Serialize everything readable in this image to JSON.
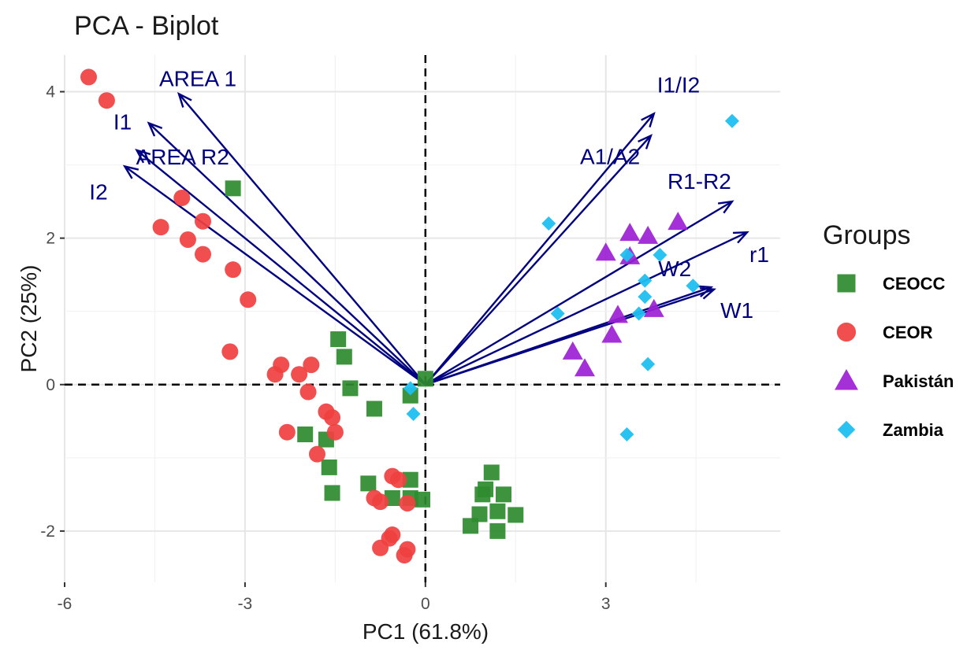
{
  "chart_data": {
    "type": "scatter",
    "title": "PCA - Biplot",
    "xlabel": "PC1 (61.8%)",
    "ylabel": "PC2 (25%)",
    "xlim": [
      -6.0,
      5.9
    ],
    "ylim": [
      -2.7,
      4.5
    ],
    "x_ticks": [
      -6,
      -3,
      0,
      3
    ],
    "x_tick_labels": [
      "-6",
      "-3",
      "0",
      "3"
    ],
    "y_ticks": [
      -2,
      0,
      2,
      4
    ],
    "y_tick_labels": [
      "-2",
      "0",
      "2",
      "4"
    ],
    "grid": true,
    "reference_lines": {
      "x": 0,
      "y": 0,
      "style": "dashed"
    },
    "legend": {
      "title": "Groups",
      "placement": "right"
    },
    "groups": [
      {
        "name": "CEOCC",
        "marker": "square",
        "color": "#2e8b2e",
        "points": [
          [
            -3.2,
            2.68
          ],
          [
            -1.45,
            0.62
          ],
          [
            -1.35,
            0.38
          ],
          [
            -1.25,
            -0.05
          ],
          [
            -0.85,
            -0.33
          ],
          [
            -0.25,
            -0.15
          ],
          [
            0.0,
            0.08
          ],
          [
            -2.0,
            -0.68
          ],
          [
            -1.65,
            -0.75
          ],
          [
            -1.6,
            -1.13
          ],
          [
            -1.55,
            -1.48
          ],
          [
            -0.95,
            -1.35
          ],
          [
            -0.55,
            -1.55
          ],
          [
            -0.25,
            -1.3
          ],
          [
            -0.25,
            -1.55
          ],
          [
            -0.05,
            -1.57
          ],
          [
            0.75,
            -1.93
          ],
          [
            0.9,
            -1.77
          ],
          [
            0.95,
            -1.5
          ],
          [
            1.0,
            -1.43
          ],
          [
            1.1,
            -1.2
          ],
          [
            1.2,
            -1.73
          ],
          [
            1.2,
            -2.0
          ],
          [
            1.3,
            -1.5
          ],
          [
            1.5,
            -1.78
          ]
        ]
      },
      {
        "name": "CEOR",
        "marker": "circle",
        "color": "#f04040",
        "points": [
          [
            -5.6,
            4.2
          ],
          [
            -5.3,
            3.88
          ],
          [
            -4.05,
            2.55
          ],
          [
            -4.4,
            2.15
          ],
          [
            -3.7,
            2.23
          ],
          [
            -3.95,
            1.98
          ],
          [
            -3.7,
            1.78
          ],
          [
            -3.2,
            1.57
          ],
          [
            -2.95,
            1.16
          ],
          [
            -3.25,
            0.45
          ],
          [
            -2.4,
            0.27
          ],
          [
            -2.5,
            0.14
          ],
          [
            -2.1,
            0.14
          ],
          [
            -1.9,
            0.27
          ],
          [
            -1.95,
            -0.1
          ],
          [
            -1.65,
            -0.37
          ],
          [
            -1.55,
            -0.45
          ],
          [
            -1.5,
            -0.65
          ],
          [
            -2.3,
            -0.65
          ],
          [
            -1.8,
            -0.95
          ],
          [
            -0.55,
            -1.25
          ],
          [
            -0.45,
            -1.3
          ],
          [
            -0.85,
            -1.55
          ],
          [
            -0.75,
            -1.6
          ],
          [
            -0.3,
            -1.62
          ],
          [
            -0.55,
            -2.05
          ],
          [
            -0.6,
            -2.1
          ],
          [
            -0.75,
            -2.23
          ],
          [
            -0.3,
            -2.25
          ],
          [
            -0.35,
            -2.33
          ]
        ]
      },
      {
        "name": "Pakistán",
        "marker": "triangle",
        "color": "#9b1fd4",
        "points": [
          [
            4.2,
            2.22
          ],
          [
            3.4,
            2.07
          ],
          [
            3.7,
            2.03
          ],
          [
            3.0,
            1.8
          ],
          [
            3.4,
            1.75
          ],
          [
            3.8,
            1.03
          ],
          [
            3.2,
            0.95
          ],
          [
            3.1,
            0.68
          ],
          [
            2.45,
            0.45
          ],
          [
            2.65,
            0.22
          ]
        ]
      },
      {
        "name": "Zambia",
        "marker": "diamond",
        "color": "#1fbfef",
        "points": [
          [
            5.1,
            3.6
          ],
          [
            2.05,
            2.2
          ],
          [
            3.35,
            1.77
          ],
          [
            3.9,
            1.77
          ],
          [
            3.65,
            1.42
          ],
          [
            4.45,
            1.35
          ],
          [
            3.65,
            1.2
          ],
          [
            3.55,
            0.97
          ],
          [
            2.2,
            0.97
          ],
          [
            3.7,
            0.28
          ],
          [
            -0.25,
            -0.05
          ],
          [
            -0.2,
            -0.4
          ],
          [
            3.35,
            -0.68
          ]
        ]
      }
    ],
    "loadings": [
      {
        "label": "AREA 1",
        "x": -4.1,
        "y": 3.97
      },
      {
        "label": "I1",
        "x": -4.6,
        "y": 3.57
      },
      {
        "label": "AREA R2",
        "x": -4.8,
        "y": 3.2
      },
      {
        "label": "I2",
        "x": -5.0,
        "y": 2.98
      },
      {
        "label": "I1/I2",
        "x": 3.8,
        "y": 3.7
      },
      {
        "label": "A1/A2",
        "x": 3.75,
        "y": 3.4
      },
      {
        "label": "R1-R2",
        "x": 5.1,
        "y": 2.5
      },
      {
        "label": "r1",
        "x": 5.35,
        "y": 2.08
      },
      {
        "label": "W2",
        "x": 4.75,
        "y": 1.33
      },
      {
        "label": "W1",
        "x": 4.8,
        "y": 1.3
      }
    ]
  }
}
